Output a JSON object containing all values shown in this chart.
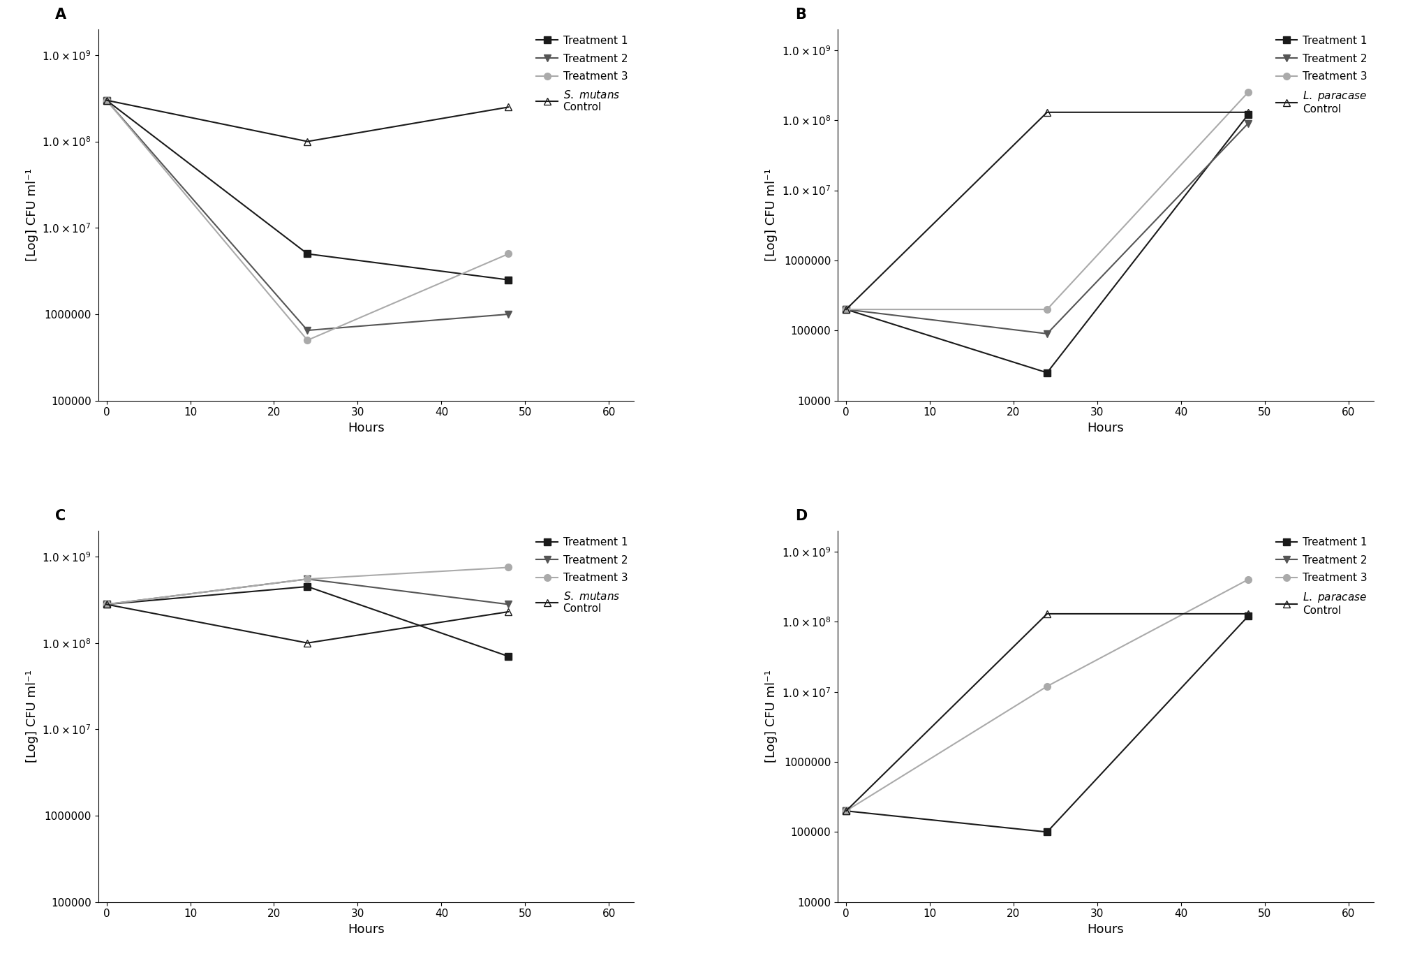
{
  "hours": [
    0,
    24,
    48
  ],
  "A": {
    "label": "A",
    "ylim": [
      100000.0,
      2000000000.0
    ],
    "yticks": [
      100000.0,
      1000000,
      10000000.0,
      100000000.0,
      1000000000.0
    ],
    "series": {
      "Treatment 1": {
        "values": [
          300000000.0,
          5000000.0,
          2500000.0
        ],
        "color": "#1a1a1a",
        "marker": "s",
        "markersize": 7,
        "markerfacecolor": "#1a1a1a"
      },
      "Treatment 2": {
        "values": [
          300000000.0,
          650000.0,
          1000000.0
        ],
        "color": "#555555",
        "marker": "v",
        "markersize": 7,
        "markerfacecolor": "#555555"
      },
      "Treatment 3": {
        "values": [
          300000000.0,
          500000.0,
          5000000.0
        ],
        "color": "#aaaaaa",
        "marker": "o",
        "markersize": 7,
        "markerfacecolor": "#aaaaaa"
      },
      "S_mutans_Control": {
        "values": [
          300000000.0,
          100000000.0,
          250000000.0
        ],
        "color": "#1a1a1a",
        "marker": "^",
        "markersize": 7,
        "markerfacecolor": "none"
      }
    },
    "control_type": "S_mutans"
  },
  "B": {
    "label": "B",
    "ylim": [
      10000.0,
      2000000000.0
    ],
    "yticks": [
      10000.0,
      100000.0,
      1000000,
      10000000.0,
      100000000.0,
      1000000000.0
    ],
    "series": {
      "Treatment 1": {
        "values": [
          200000.0,
          25000.0,
          120000000.0
        ],
        "color": "#1a1a1a",
        "marker": "s",
        "markersize": 7,
        "markerfacecolor": "#1a1a1a"
      },
      "Treatment 2": {
        "values": [
          200000.0,
          90000.0,
          90000000.0
        ],
        "color": "#555555",
        "marker": "v",
        "markersize": 7,
        "markerfacecolor": "#555555"
      },
      "Treatment 3": {
        "values": [
          200000.0,
          200000.0,
          250000000.0
        ],
        "color": "#aaaaaa",
        "marker": "o",
        "markersize": 7,
        "markerfacecolor": "#aaaaaa"
      },
      "L_paracasei_Control": {
        "values": [
          200000.0,
          130000000.0,
          130000000.0
        ],
        "color": "#1a1a1a",
        "marker": "^",
        "markersize": 7,
        "markerfacecolor": "none"
      }
    },
    "control_type": "L_paracasei"
  },
  "C": {
    "label": "C",
    "ylim": [
      100000.0,
      2000000000.0
    ],
    "yticks": [
      100000.0,
      1000000,
      10000000.0,
      100000000.0,
      1000000000.0
    ],
    "series": {
      "Treatment 1": {
        "values": [
          280000000.0,
          450000000.0,
          70000000.0
        ],
        "color": "#1a1a1a",
        "marker": "s",
        "markersize": 7,
        "markerfacecolor": "#1a1a1a"
      },
      "Treatment 2": {
        "values": [
          280000000.0,
          550000000.0,
          280000000.0
        ],
        "color": "#555555",
        "marker": "v",
        "markersize": 7,
        "markerfacecolor": "#555555"
      },
      "Treatment 3": {
        "values": [
          280000000.0,
          550000000.0,
          750000000.0
        ],
        "color": "#aaaaaa",
        "marker": "o",
        "markersize": 7,
        "markerfacecolor": "#aaaaaa"
      },
      "S_mutans_Control": {
        "values": [
          280000000.0,
          100000000.0,
          230000000.0
        ],
        "color": "#1a1a1a",
        "marker": "^",
        "markersize": 7,
        "markerfacecolor": "none"
      }
    },
    "control_type": "S_mutans"
  },
  "D": {
    "label": "D",
    "ylim": [
      10000.0,
      2000000000.0
    ],
    "yticks": [
      10000.0,
      100000.0,
      1000000,
      10000000.0,
      100000000.0,
      1000000000.0
    ],
    "series": {
      "Treatment 1": {
        "values": [
          200000.0,
          100000.0,
          120000000.0
        ],
        "color": "#1a1a1a",
        "marker": "s",
        "markersize": 7,
        "markerfacecolor": "#1a1a1a"
      },
      "Treatment 2": {
        "values": [
          200000.0,
          null,
          null
        ],
        "color": "#555555",
        "marker": "v",
        "markersize": 7,
        "markerfacecolor": "#555555"
      },
      "Treatment 3": {
        "values": [
          200000.0,
          12000000.0,
          400000000.0
        ],
        "color": "#aaaaaa",
        "marker": "o",
        "markersize": 7,
        "markerfacecolor": "#aaaaaa"
      },
      "L_paracasei_Control": {
        "values": [
          200000.0,
          130000000.0,
          130000000.0
        ],
        "color": "#1a1a1a",
        "marker": "^",
        "markersize": 7,
        "markerfacecolor": "none"
      }
    },
    "control_type": "L_paracasei"
  },
  "xlabel": "Hours",
  "ylabel": "[Log] CFU ml⁻¹",
  "xticks": [
    0,
    10,
    20,
    30,
    40,
    50,
    60
  ],
  "xlim": [
    -1,
    63
  ]
}
